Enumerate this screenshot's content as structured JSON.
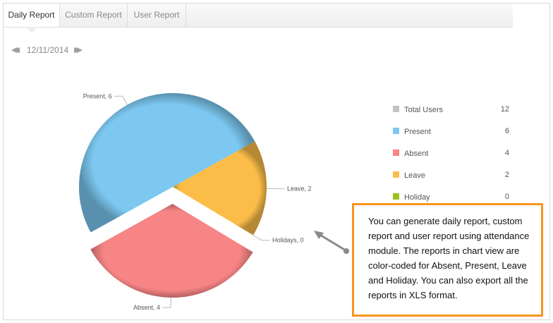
{
  "tabs": [
    {
      "label": "Daily Report",
      "active": true
    },
    {
      "label": "Custom Report",
      "active": false
    },
    {
      "label": "User Report",
      "active": false
    }
  ],
  "date_nav": {
    "date": "12/11/2014",
    "prev_icon": "double-chevron-left-icon",
    "next_icon": "double-chevron-right-icon"
  },
  "chart_data": {
    "type": "pie",
    "categories": [
      "Present",
      "Absent",
      "Leave",
      "Holidays"
    ],
    "values": [
      6,
      4,
      2,
      0
    ],
    "slice_labels": [
      "Present, 6",
      "Absent, 4",
      "Leave, 2",
      "Holidays, 0"
    ],
    "colors": [
      "#7cc8f0",
      "#f78585",
      "#fbbd48",
      "#99c21e"
    ],
    "exploded": "Absent",
    "legend": {
      "placement": "right",
      "items": [
        {
          "label": "Total Users",
          "value": "12",
          "color": "#c2c2c2"
        },
        {
          "label": "Present",
          "value": "6",
          "color": "#7cc8f0"
        },
        {
          "label": "Absent",
          "value": "4",
          "color": "#f78585"
        },
        {
          "label": "Leave",
          "value": "2",
          "color": "#fbbd48"
        },
        {
          "label": "Holiday",
          "value": "0",
          "color": "#99c21e"
        }
      ]
    }
  },
  "callout": {
    "text": "You can generate daily report, custom report and user report using attendance module. The reports in chart view are color-coded for Absent, Present, Leave and Holiday. You can also export all the reports in XLS format.",
    "border_color": "#f7941d"
  }
}
